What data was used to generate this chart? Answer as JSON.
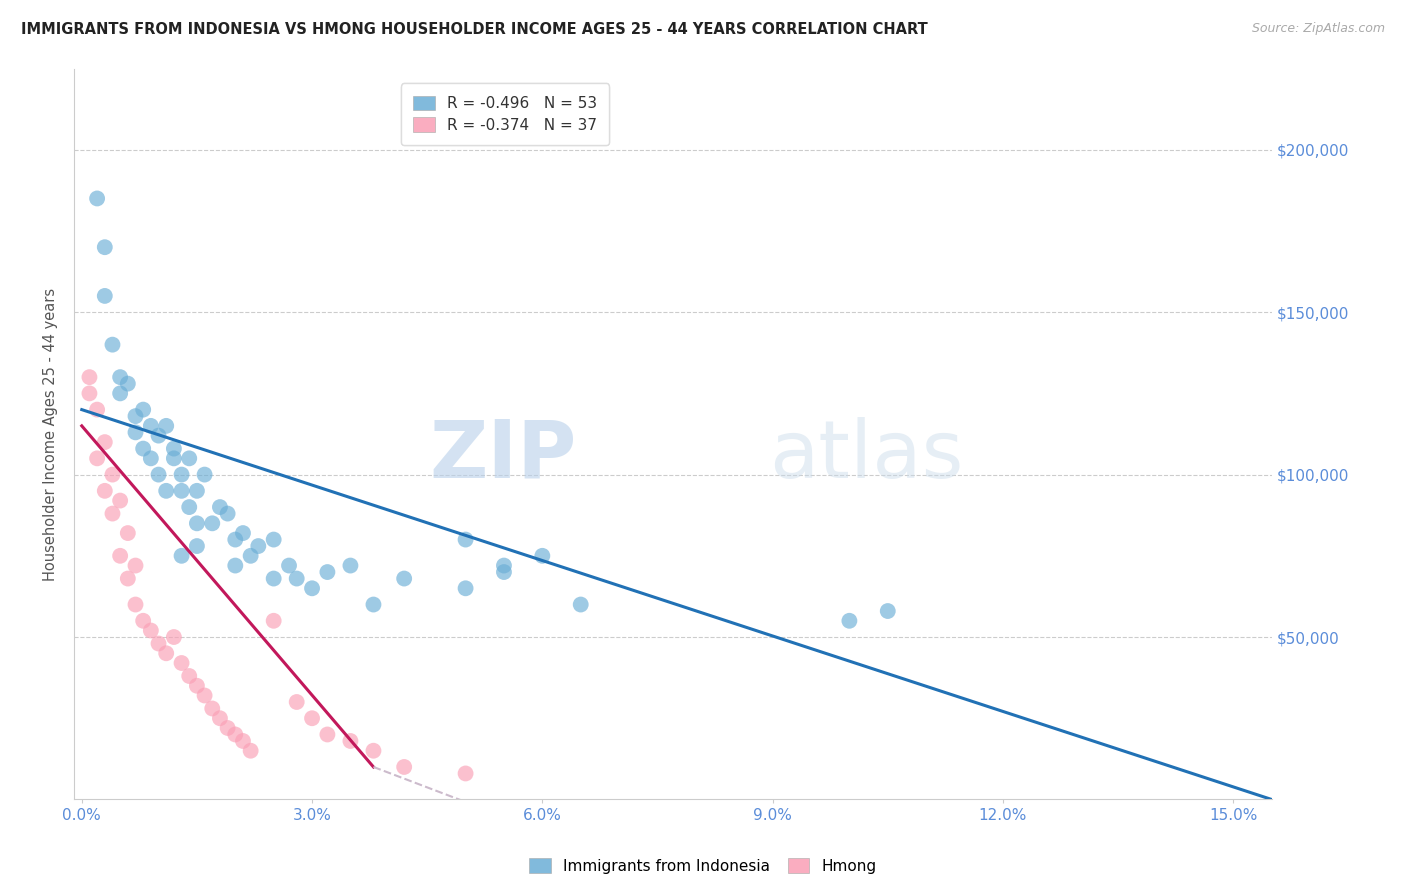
{
  "title": "IMMIGRANTS FROM INDONESIA VS HMONG HOUSEHOLDER INCOME AGES 25 - 44 YEARS CORRELATION CHART",
  "source": "Source: ZipAtlas.com",
  "ylabel": "Householder Income Ages 25 - 44 years",
  "xlabel_ticks": [
    "0.0%",
    "3.0%",
    "6.0%",
    "9.0%",
    "12.0%",
    "15.0%"
  ],
  "xlabel_vals": [
    0.0,
    0.03,
    0.06,
    0.09,
    0.12,
    0.15
  ],
  "ytick_labels": [
    "$50,000",
    "$100,000",
    "$150,000",
    "$200,000"
  ],
  "ytick_vals": [
    50000,
    100000,
    150000,
    200000
  ],
  "xlim": [
    -0.001,
    0.155
  ],
  "ylim": [
    0,
    225000
  ],
  "indonesia_R": -0.496,
  "indonesia_N": 53,
  "hmong_R": -0.374,
  "hmong_N": 37,
  "indonesia_color": "#6baed6",
  "hmong_color": "#fa9fb5",
  "indonesia_line_color": "#2171b5",
  "hmong_line_color": "#c2185b",
  "hmong_line_dashed_color": "#ccbbcc",
  "watermark_zip": "ZIP",
  "watermark_atlas": "atlas",
  "indonesia_x": [
    0.002,
    0.003,
    0.003,
    0.004,
    0.005,
    0.005,
    0.006,
    0.007,
    0.007,
    0.008,
    0.008,
    0.009,
    0.009,
    0.01,
    0.01,
    0.011,
    0.011,
    0.012,
    0.012,
    0.013,
    0.013,
    0.014,
    0.014,
    0.015,
    0.015,
    0.016,
    0.017,
    0.018,
    0.019,
    0.02,
    0.021,
    0.022,
    0.023,
    0.025,
    0.027,
    0.028,
    0.03,
    0.032,
    0.035,
    0.038,
    0.042,
    0.05,
    0.055,
    0.06,
    0.065,
    0.05,
    0.055,
    0.1,
    0.105,
    0.013,
    0.015,
    0.02,
    0.025
  ],
  "indonesia_y": [
    185000,
    170000,
    155000,
    140000,
    130000,
    125000,
    128000,
    118000,
    113000,
    120000,
    108000,
    115000,
    105000,
    112000,
    100000,
    115000,
    95000,
    108000,
    105000,
    95000,
    100000,
    90000,
    105000,
    95000,
    85000,
    100000,
    85000,
    90000,
    88000,
    80000,
    82000,
    75000,
    78000,
    80000,
    72000,
    68000,
    65000,
    70000,
    72000,
    60000,
    68000,
    80000,
    72000,
    75000,
    60000,
    65000,
    70000,
    55000,
    58000,
    75000,
    78000,
    72000,
    68000
  ],
  "hmong_x": [
    0.001,
    0.001,
    0.002,
    0.002,
    0.003,
    0.003,
    0.004,
    0.004,
    0.005,
    0.005,
    0.006,
    0.006,
    0.007,
    0.007,
    0.008,
    0.009,
    0.01,
    0.011,
    0.012,
    0.013,
    0.014,
    0.015,
    0.016,
    0.017,
    0.018,
    0.019,
    0.02,
    0.021,
    0.022,
    0.025,
    0.028,
    0.03,
    0.032,
    0.035,
    0.038,
    0.042,
    0.05
  ],
  "hmong_y": [
    130000,
    125000,
    120000,
    105000,
    110000,
    95000,
    100000,
    88000,
    92000,
    75000,
    82000,
    68000,
    72000,
    60000,
    55000,
    52000,
    48000,
    45000,
    50000,
    42000,
    38000,
    35000,
    32000,
    28000,
    25000,
    22000,
    20000,
    18000,
    15000,
    55000,
    30000,
    25000,
    20000,
    18000,
    15000,
    10000,
    8000
  ]
}
